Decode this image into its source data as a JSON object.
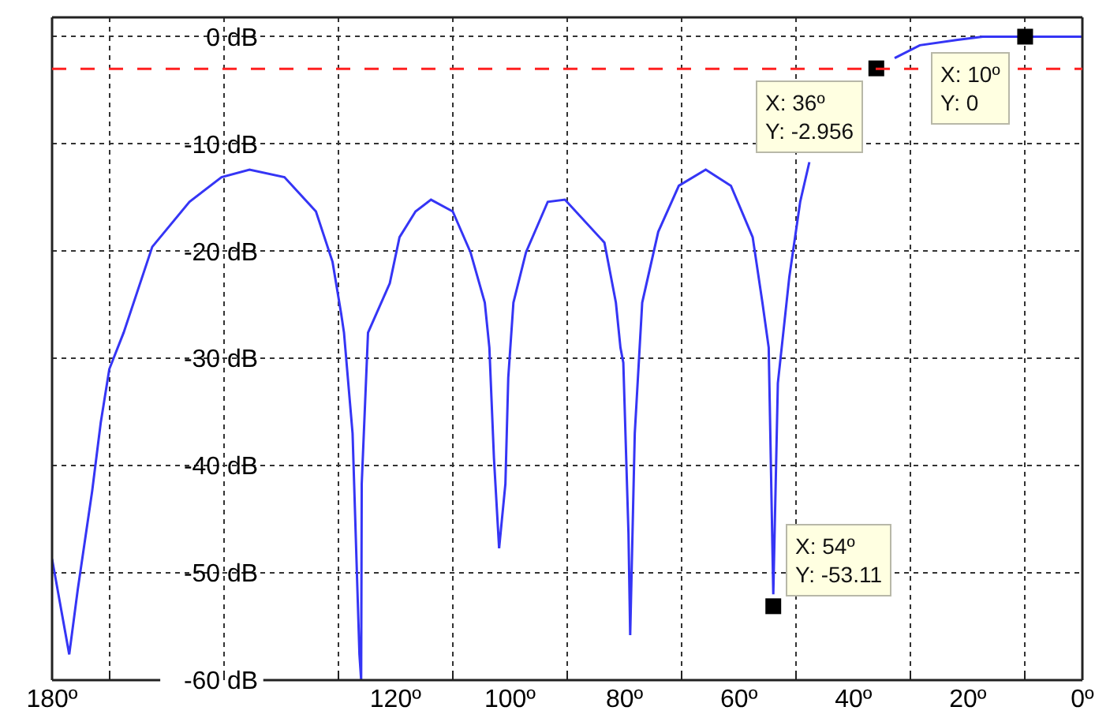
{
  "chart_data": {
    "type": "line",
    "xlim": [
      180,
      0
    ],
    "ylim": [
      -60,
      1.8
    ],
    "xticks": [
      {
        "value": 180,
        "label": "180º"
      },
      {
        "value": 170,
        "label": null
      },
      {
        "value": 150,
        "label": null
      },
      {
        "value": 130,
        "label": null
      },
      {
        "value": 120,
        "label": "120º"
      },
      {
        "value": 110,
        "label": null
      },
      {
        "value": 100,
        "label": "100º"
      },
      {
        "value": 90,
        "label": null
      },
      {
        "value": 80,
        "label": "80º"
      },
      {
        "value": 70,
        "label": null
      },
      {
        "value": 60,
        "label": "60º"
      },
      {
        "value": 50,
        "label": null
      },
      {
        "value": 40,
        "label": "40º"
      },
      {
        "value": 30,
        "label": null
      },
      {
        "value": 20,
        "label": "20º"
      },
      {
        "value": 10,
        "label": null
      },
      {
        "value": 0,
        "label": "0º"
      }
    ],
    "yticks": [
      {
        "value": 0,
        "label": "0 dB"
      },
      {
        "value": -10,
        "label": "-10 dB"
      },
      {
        "value": -20,
        "label": "-20 dB"
      },
      {
        "value": -30,
        "label": "-30 dB"
      },
      {
        "value": -40,
        "label": "-40 dB"
      },
      {
        "value": -50,
        "label": "-50 dB"
      },
      {
        "value": -60,
        "label": "-60 dB"
      }
    ],
    "grid": true,
    "line_style": "solid",
    "series": [
      {
        "color": "#3535f5",
        "x": [
          180,
          177,
          175.5,
          173,
          171.5,
          170,
          167.5,
          162.5,
          156,
          150.4,
          145.5,
          139.4,
          133.9,
          131,
          129.5,
          129,
          127.5,
          126.3,
          126,
          125.9,
          124.8,
          121,
          119.3,
          116.5,
          113.8,
          110,
          106.9,
          104.4,
          103.6,
          102.8,
          101.9,
          100.8,
          100.3,
          99.4,
          97.2,
          93.4,
          90.4,
          83.5,
          81.5,
          80.7,
          80.2,
          79.3,
          79,
          78.2,
          76.9,
          74.1,
          70.5,
          65.8,
          61.4,
          57.6,
          55.9,
          54.8,
          54,
          53.2,
          51.2,
          49.3,
          47.7,
          46.3,
          42,
          32.8,
          28.4,
          21.8,
          17.4,
          10,
          0
        ],
        "values": [
          -48.7,
          -57.6,
          -51.5,
          -42.4,
          -36,
          -31,
          -27.6,
          -19.6,
          -15.4,
          -13.1,
          -12.4,
          -13.1,
          -16.3,
          -21,
          -25.8,
          -27.6,
          -37,
          -57.6,
          -60,
          -41.7,
          -27.6,
          -23,
          -18.7,
          -16.3,
          -15.2,
          -16.3,
          -20.1,
          -24.8,
          -29,
          -39.3,
          -47.7,
          -41.7,
          -31.8,
          -24.8,
          -20.1,
          -15.4,
          -15.2,
          -19.2,
          -24.8,
          -29,
          -30.4,
          -46.3,
          -55.8,
          -37,
          -24.8,
          -18.2,
          -13.9,
          -12.4,
          -13.9,
          -18.7,
          -24.8,
          -29,
          -52,
          -32.3,
          -22.4,
          -15.4,
          -11.7,
          null,
          null,
          -2,
          -0.8,
          -0.3,
          0,
          0,
          0
        ]
      },
      {
        "type": "scatter",
        "marker": "square",
        "color": "#000000",
        "x": [
          36,
          10,
          54
        ],
        "values": [
          -2.956,
          0,
          -53.11
        ]
      }
    ],
    "ref_lines": [
      {
        "axis": "y",
        "value": -3,
        "color": "#ff2020",
        "line_style": "dashed"
      }
    ],
    "annotations": [
      {
        "text": "X: 36º\nY: -2.956",
        "x": 36,
        "y": -2.956
      },
      {
        "text": "X: 10º\nY: 0",
        "x": 10,
        "y": 0
      },
      {
        "text": "X: 54º\nY: -53.11",
        "x": 54,
        "y": -53.11
      }
    ]
  }
}
